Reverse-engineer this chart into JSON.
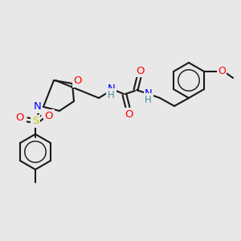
{
  "bg_color": "#e8e8e8",
  "bond_color": "#1a1a1a",
  "atom_colors": {
    "O": "#ff0000",
    "N": "#0000ff",
    "S": "#cccc00",
    "H": "#4a9090",
    "C": "#1a1a1a"
  },
  "figsize": [
    3.0,
    3.0
  ],
  "dpi": 100
}
